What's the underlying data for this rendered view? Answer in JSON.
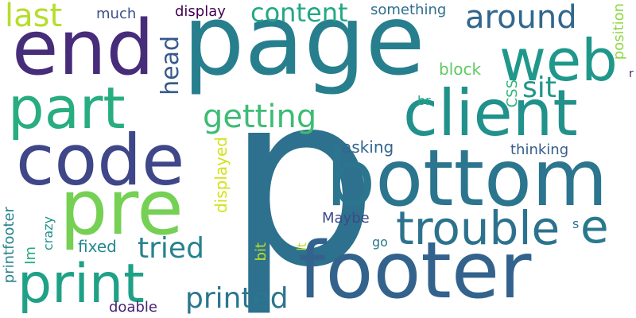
{
  "words": [
    {
      "text": "p",
      "color": "#2d718e"
    },
    {
      "text": "page",
      "color": "#277f8e"
    },
    {
      "text": "footer",
      "color": "#33638d"
    },
    {
      "text": "bottom",
      "color": "#2b758e"
    },
    {
      "text": "end",
      "color": "#472c7a"
    },
    {
      "text": "code",
      "color": "#3f4788"
    },
    {
      "text": "pre",
      "color": "#75d054"
    },
    {
      "text": "client",
      "color": "#21918c"
    },
    {
      "text": "web",
      "color": "#1f988b"
    },
    {
      "text": "part",
      "color": "#27ad81"
    },
    {
      "text": "print",
      "color": "#1fa187"
    },
    {
      "text": "trouble",
      "color": "#2c728e"
    },
    {
      "text": "e",
      "color": "#2a788e"
    },
    {
      "text": "around",
      "color": "#31678e"
    },
    {
      "text": "content",
      "color": "#22a884"
    },
    {
      "text": "getting",
      "color": "#3dbc74"
    },
    {
      "text": "last",
      "color": "#b5de2b"
    },
    {
      "text": "head",
      "color": "#37598c"
    },
    {
      "text": "sit",
      "color": "#1f978b"
    },
    {
      "text": "tried",
      "color": "#26828e"
    },
    {
      "text": "printed",
      "color": "#2a768e"
    },
    {
      "text": "something",
      "color": "#2e6e8e"
    },
    {
      "text": "display",
      "color": "#440154"
    },
    {
      "text": "much",
      "color": "#3b518b"
    },
    {
      "text": "block",
      "color": "#5ec962"
    },
    {
      "text": "position",
      "color": "#8fd744"
    },
    {
      "text": "CSS",
      "color": "#2fb47c"
    },
    {
      "text": "br",
      "color": "#21a685"
    },
    {
      "text": "asking",
      "color": "#32658e"
    },
    {
      "text": "thinking",
      "color": "#365c8d"
    },
    {
      "text": "displayed",
      "color": "#d2e21b"
    },
    {
      "text": "Maybe",
      "color": "#3e4989"
    },
    {
      "text": "s",
      "color": "#2c728e"
    },
    {
      "text": "go",
      "color": "#2a788e"
    },
    {
      "text": "lt",
      "color": "#c2df23"
    },
    {
      "text": "bit",
      "color": "#bddf26"
    },
    {
      "text": "fixed",
      "color": "#23898e"
    },
    {
      "text": "crazy",
      "color": "#20928c"
    },
    {
      "text": "Im",
      "color": "#23a983"
    },
    {
      "text": "printfooter",
      "color": "#26828e"
    },
    {
      "text": "doable",
      "color": "#482374"
    },
    {
      "text": "r",
      "color": "#481f70"
    }
  ]
}
